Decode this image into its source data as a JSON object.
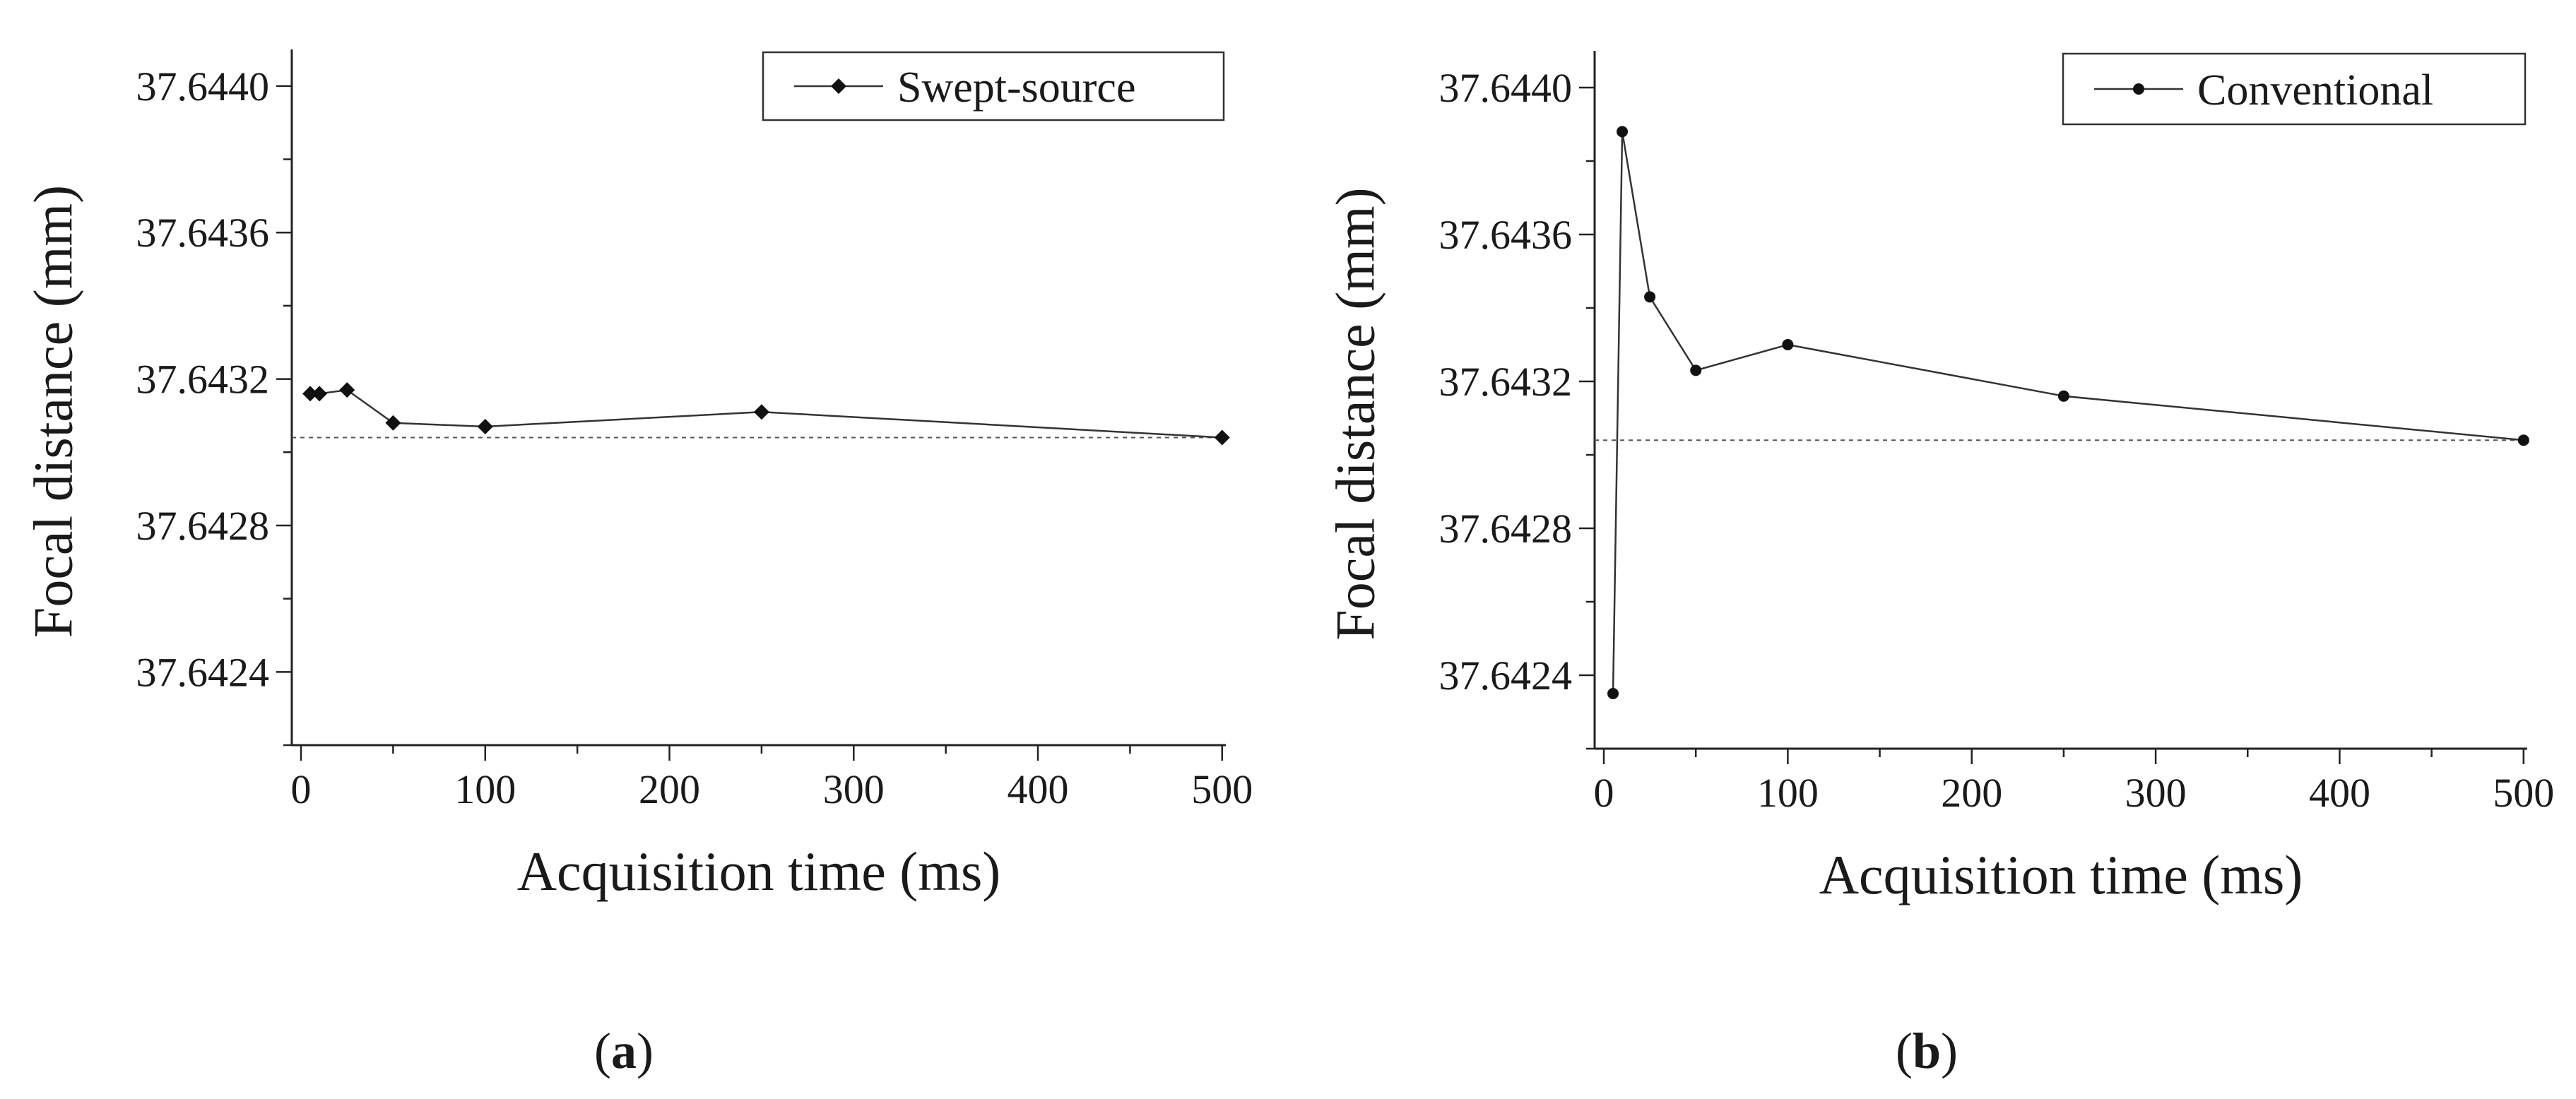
{
  "chart_data": [
    {
      "type": "line",
      "panel_label": "a",
      "title": "",
      "xlabel": "Acquisition time (ms)",
      "ylabel": "Focal distance (mm)",
      "xlim": [
        -5,
        502
      ],
      "ylim": [
        37.6422,
        37.6441
      ],
      "xticks": [
        0,
        100,
        200,
        300,
        400,
        500
      ],
      "xtick_labels": [
        "0",
        "100",
        "200",
        "300",
        "400",
        "500"
      ],
      "yticks": [
        37.6424,
        37.6428,
        37.6432,
        37.6436,
        37.644
      ],
      "ytick_labels": [
        "37.6424",
        "37.6428",
        "37.6432",
        "37.6436",
        "37.6440"
      ],
      "legend_position": "top-right",
      "reference_line": 37.64304,
      "series": [
        {
          "name": "Swept-source",
          "marker": "diamond",
          "x": [
            5,
            10,
            25,
            50,
            100,
            250,
            500
          ],
          "y": [
            37.64316,
            37.64316,
            37.64317,
            37.64308,
            37.64307,
            37.64311,
            37.64304
          ]
        }
      ]
    },
    {
      "type": "line",
      "panel_label": "b",
      "title": "",
      "xlabel": "Acquisition time (ms)",
      "ylabel": "Focal distance (mm)",
      "xlim": [
        -5,
        502
      ],
      "ylim": [
        37.6422,
        37.6441
      ],
      "xticks": [
        0,
        100,
        200,
        300,
        400,
        500
      ],
      "xtick_labels": [
        "0",
        "100",
        "200",
        "300",
        "400",
        "500"
      ],
      "yticks": [
        37.6424,
        37.6428,
        37.6432,
        37.6436,
        37.644
      ],
      "ytick_labels": [
        "37.6424",
        "37.6428",
        "37.6432",
        "37.6436",
        "37.6440"
      ],
      "legend_position": "top-right",
      "reference_line": 37.64304,
      "series": [
        {
          "name": "Conventional",
          "marker": "circle",
          "x": [
            5,
            10,
            25,
            50,
            100,
            250,
            500
          ],
          "y": [
            37.64235,
            37.64388,
            37.64343,
            37.64323,
            37.6433,
            37.64316,
            37.64304
          ]
        }
      ]
    }
  ],
  "colors": {
    "axis": "#222222",
    "series": "#333333",
    "marker": "#111111",
    "reference": "#555555"
  }
}
